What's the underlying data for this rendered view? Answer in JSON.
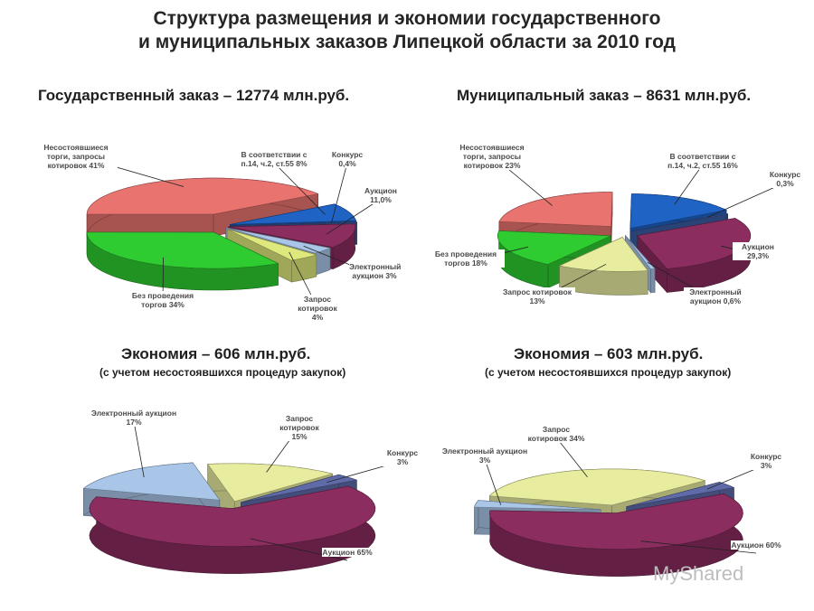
{
  "title": {
    "line1": "Структура  размещения и экономии государственного",
    "line2": "и муниципальных заказов Липецкой области за 2010 год"
  },
  "chart_data": [
    {
      "type": "pie",
      "title": "Государственный заказ – 12774 млн.руб.",
      "subtitle": "",
      "slices": [
        {
          "label": "Несостоявшиеся торги, запросы котировок 41%",
          "value": 41,
          "color": "#e8736f"
        },
        {
          "label": "В соответствии с п.14, ч.2, ст.55 8%",
          "value": 8,
          "color": "#1f63c4"
        },
        {
          "label": "Конкурс 0,4%",
          "value": 0.4,
          "color": "#3b5da5"
        },
        {
          "label": "Аукцион 11,0%",
          "value": 11.0,
          "color": "#8b2d5f"
        },
        {
          "label": "Электронный аукцион 3%",
          "value": 3,
          "color": "#a9c6e8"
        },
        {
          "label": "Запрос котировок 4%",
          "value": 4,
          "color": "#dfe87c"
        },
        {
          "label": "Без проведения торгов 34%",
          "value": 34,
          "color": "#2ecc31"
        }
      ]
    },
    {
      "type": "pie",
      "title": "Муниципальный заказ – 8631 млн.руб.",
      "subtitle": "",
      "slices": [
        {
          "label": "Несостоявшиеся торги, запросы котировок 23%",
          "value": 23,
          "color": "#e8736f"
        },
        {
          "label": "В соответствии с п.14, ч.2, ст.55 16%",
          "value": 16,
          "color": "#1f63c4"
        },
        {
          "label": "Конкурс 0,3%",
          "value": 0.3,
          "color": "#3b5da5"
        },
        {
          "label": "Аукцион 29,3%",
          "value": 29.3,
          "color": "#8b2d5f"
        },
        {
          "label": "Электронный аукцион 0,6%",
          "value": 0.6,
          "color": "#a9c6e8"
        },
        {
          "label": "Запрос котировок 13%",
          "value": 13,
          "color": "#e8ec9e"
        },
        {
          "label": "Без проведения торгов 18%",
          "value": 18,
          "color": "#2ecc31"
        }
      ]
    },
    {
      "type": "pie",
      "title": "Экономия  – 606 млн.руб.",
      "subtitle": "(с учетом несостоявшихся процедур закупок)",
      "slices": [
        {
          "label": "Электронный аукцион 17%",
          "value": 17,
          "color": "#a9c6e8"
        },
        {
          "label": "Запрос котировок 15%",
          "value": 15,
          "color": "#e8ec9e"
        },
        {
          "label": "Конкурс 3%",
          "value": 3,
          "color": "#5f6aa8"
        },
        {
          "label": "Аукцион 65%",
          "value": 65,
          "color": "#8b2d5f"
        }
      ]
    },
    {
      "type": "pie",
      "title": "Экономия  – 603 млн.руб.",
      "subtitle": "(с учетом несостоявшихся процедур закупок)",
      "slices": [
        {
          "label": "Электронный аукцион 3%",
          "value": 3,
          "color": "#a9c6e8"
        },
        {
          "label": "Запрос котировок 34%",
          "value": 34,
          "color": "#e8ec9e"
        },
        {
          "label": "Конкурс 3%",
          "value": 3,
          "color": "#5f6aa8"
        },
        {
          "label": "Аукцион 60%",
          "value": 60,
          "color": "#8b2d5f"
        }
      ]
    }
  ],
  "watermark": "MyShared"
}
